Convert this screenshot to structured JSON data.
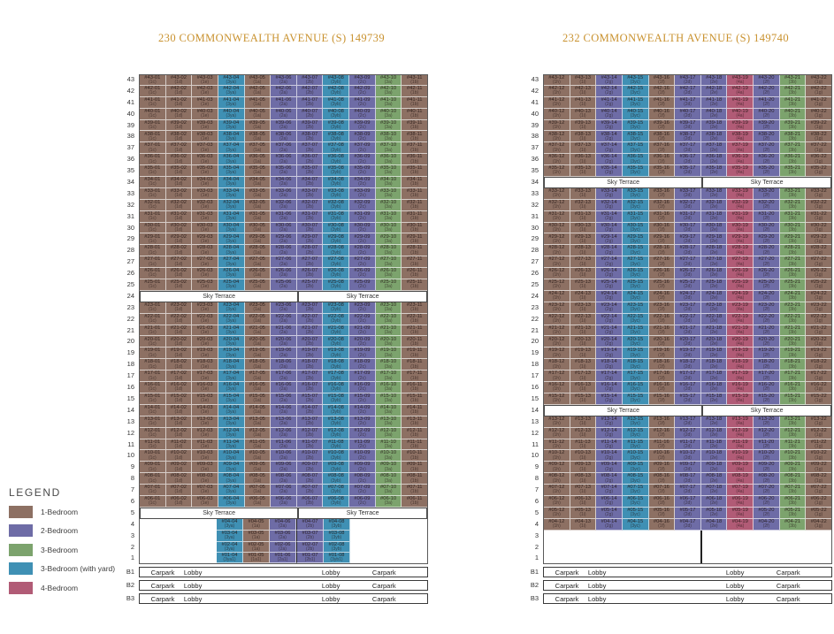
{
  "colors": {
    "br1": "#8d7063",
    "br2": "#6e6ca6",
    "br3": "#7ca36d",
    "br3y": "#3f90b4",
    "br4": "#b15b76",
    "title": "#c9922f"
  },
  "terrace_label": "Sky Terrace",
  "basement_labels": [
    "Carpark",
    "Lobby",
    "Lobby",
    "Carpark"
  ],
  "legend": {
    "title": "LEGEND",
    "items": [
      {
        "label": "1-Bedroom",
        "color": "#8d7063"
      },
      {
        "label": "2-Bedroom",
        "color": "#6e6ca6"
      },
      {
        "label": "3-Bedroom",
        "color": "#7ca36d"
      },
      {
        "label": "3-Bedroom (with yard)",
        "color": "#3f90b4"
      },
      {
        "label": "4-Bedroom",
        "color": "#b15b76"
      }
    ]
  },
  "towers": [
    {
      "title": "230 COMMONWEALTH AVENUE (S) 149739",
      "top_floor": 43,
      "sky_terrace_floors": [
        24,
        5
      ],
      "empty_floors": [],
      "partial_floors": [
        4,
        3,
        2,
        1
      ],
      "partial_units": [
        "04",
        "05",
        "06",
        "07",
        "08"
      ],
      "floor1_types": {
        "04": "3ya1",
        "05": "1a1",
        "06": "2a1",
        "07": "2b1",
        "08": "3yb1"
      },
      "split_index": 6,
      "columns": [
        {
          "unit": "01",
          "type": "1c",
          "cat": "br1"
        },
        {
          "unit": "02",
          "type": "1d",
          "cat": "br1"
        },
        {
          "unit": "03",
          "type": "1e",
          "cat": "br1"
        },
        {
          "unit": "04",
          "type": "3ya",
          "cat": "br3y"
        },
        {
          "unit": "05",
          "type": "1a",
          "cat": "br1"
        },
        {
          "unit": "06",
          "type": "2a",
          "cat": "br2"
        },
        {
          "unit": "07",
          "type": "2b",
          "cat": "br2"
        },
        {
          "unit": "08",
          "type": "3yb",
          "cat": "br3y"
        },
        {
          "unit": "09",
          "type": "2c",
          "cat": "br2"
        },
        {
          "unit": "10",
          "type": "3a",
          "cat": "br3"
        },
        {
          "unit": "11",
          "type": "1b",
          "cat": "br1"
        }
      ],
      "basements": [
        "B1",
        "B2",
        "B3"
      ]
    },
    {
      "title": "232 COMMONWEALTH AVENUE (S) 149740",
      "top_floor": 43,
      "sky_terrace_floors": [
        34,
        14
      ],
      "empty_floors": [
        3,
        2,
        1
      ],
      "partial_floors": [],
      "partial_units": [],
      "floor1_types": {},
      "split_index": 6,
      "columns": [
        {
          "unit": "12",
          "type": "1h",
          "cat": "br1"
        },
        {
          "unit": "13",
          "type": "1i",
          "cat": "br1"
        },
        {
          "unit": "14",
          "type": "2g",
          "cat": "br2"
        },
        {
          "unit": "15",
          "type": "3yc",
          "cat": "br3y"
        },
        {
          "unit": "16",
          "type": "1f",
          "cat": "br1"
        },
        {
          "unit": "17",
          "type": "2d",
          "cat": "br2"
        },
        {
          "unit": "18",
          "type": "2e",
          "cat": "br2"
        },
        {
          "unit": "19",
          "type": "4a",
          "cat": "br4"
        },
        {
          "unit": "20",
          "type": "2f",
          "cat": "br2"
        },
        {
          "unit": "21",
          "type": "3b",
          "cat": "br3"
        },
        {
          "unit": "22",
          "type": "1g",
          "cat": "br1"
        }
      ],
      "basements": [
        "B1",
        "B2",
        "B3"
      ]
    }
  ]
}
